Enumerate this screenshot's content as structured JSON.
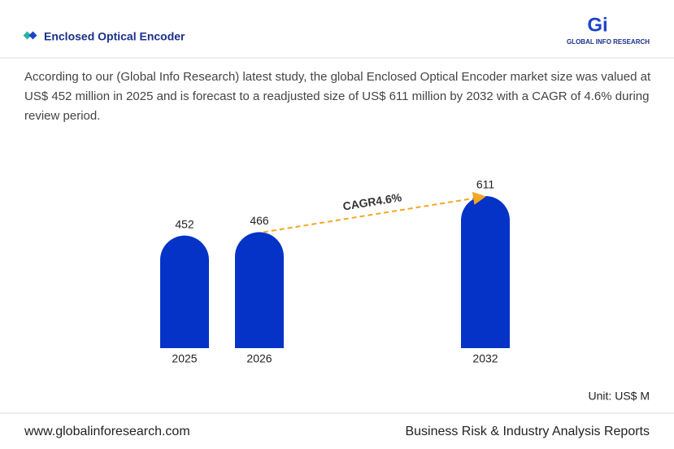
{
  "header": {
    "title": "Enclosed Optical Encoder",
    "logo": "GLOBAL INFO RESEARCH"
  },
  "description": "According to our (Global Info Research) latest study, the global Enclosed Optical Encoder market size was valued at US$ 452 million in 2025 and is forecast to a readjusted size of US$ 611 million by 2032 with a CAGR of 4.6% during review period.",
  "chart_data": {
    "type": "bar",
    "categories": [
      "2025",
      "2026",
      "2032"
    ],
    "values": [
      452,
      466,
      611
    ],
    "color": "#0533c8",
    "annotation": "CAGR4.6%",
    "unit": "Unit: US$ M"
  },
  "footer": {
    "left": "www.globalinforesearch.com",
    "right": "Business Risk & Industry Analysis Reports"
  }
}
